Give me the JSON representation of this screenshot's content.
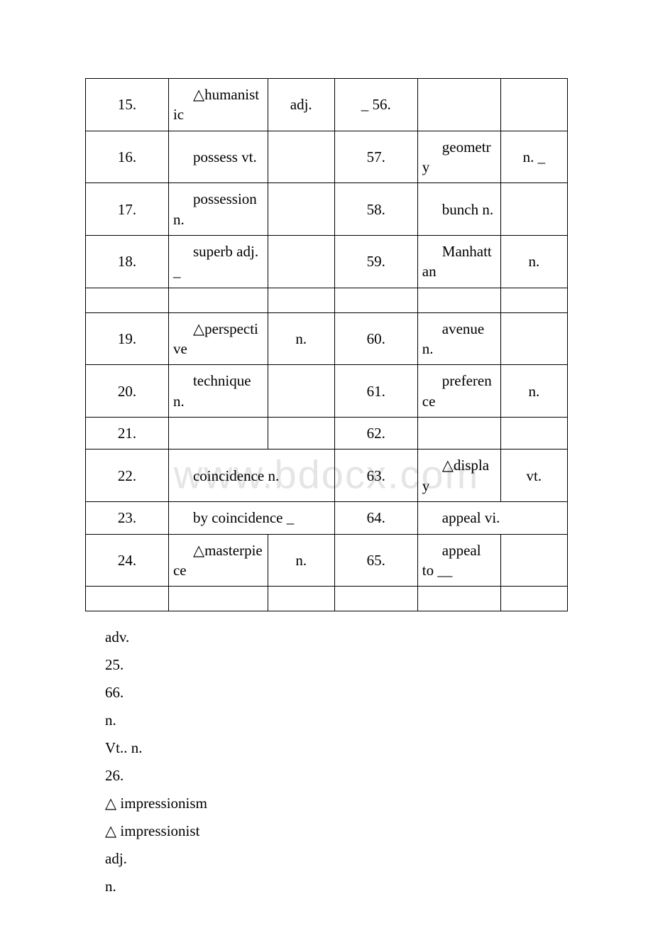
{
  "watermark": "www.bdocx.com",
  "table": {
    "rows": [
      {
        "c0": "15.",
        "c1": "△humanistic",
        "c2": "adj.",
        "c3": "_ 56.",
        "c4": "",
        "c5": ""
      },
      {
        "c0": "16.",
        "c1": "possess vt.",
        "c2": "",
        "c3": "57.",
        "c4": "geometry",
        "c5": "n. _"
      },
      {
        "c0": "17.",
        "c1": "possession n.",
        "c2": "",
        "c3": "58.",
        "c4": "bunch n.",
        "c5": ""
      },
      {
        "c0": "18.",
        "c1": "superb adj. _",
        "c2": "",
        "c3": "59.",
        "c4": "Manhattan",
        "c5": "n."
      },
      {
        "spacer": true
      },
      {
        "c0": "19.",
        "c1": "△perspective",
        "c2": "n.",
        "c3": "60.",
        "c4": "avenue n.",
        "c5": ""
      },
      {
        "c0": "20.",
        "c1": "technique n.",
        "c2": "",
        "c3": "61.",
        "c4": "preference",
        "c5": "n."
      },
      {
        "c0": "21.",
        "c1": "",
        "c2": "",
        "c3": "62.",
        "c4": "",
        "c5": ""
      },
      {
        "c0": "22.",
        "c1": "coincidence n.",
        "span12": true,
        "c3": "63.",
        "c4": "△display",
        "c5": "vt."
      },
      {
        "c0": "23.",
        "c1": "by coincidence _",
        "span12": true,
        "c3": "64.",
        "c4": "appeal vi.",
        "span45": true
      },
      {
        "c0": "24.",
        "c1": "△masterpiece",
        "c2": "n.",
        "c3": "65.",
        "c4": "appeal to __",
        "c5": ""
      },
      {
        "spacer": true
      }
    ]
  },
  "below": [
    "adv.",
    "25.",
    "66.",
    "n.",
    "Vt.. n.",
    "26.",
    "△ impressionism",
    "△ impressionist",
    "adj.",
    "n."
  ]
}
